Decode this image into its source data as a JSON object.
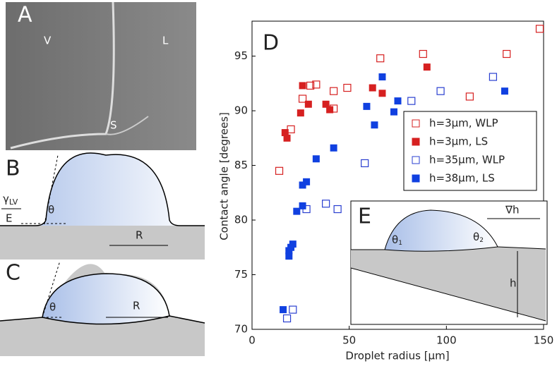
{
  "panels": {
    "a": {
      "label": "A",
      "v": "V",
      "l": "L",
      "s": "S"
    },
    "b": {
      "label": "B",
      "gamma": "γ",
      "gamma_sub": "LV",
      "e": "E",
      "theta": "θ",
      "r": "R"
    },
    "c": {
      "label": "C",
      "theta": "θ",
      "r": "R"
    },
    "d": {
      "label": "D"
    },
    "e": {
      "label": "E",
      "theta1": "θ",
      "theta1_sub": "1",
      "theta2": "θ",
      "theta2_sub": "2",
      "grad": "∇h",
      "h": "h"
    }
  },
  "chart_data": {
    "type": "scatter",
    "x_label": "Droplet radius [μm]",
    "y_label": "Contact angle [degrees]",
    "xlim": [
      0,
      150
    ],
    "ylim": [
      70,
      98.2
    ],
    "xticks": [
      0,
      50,
      100,
      150
    ],
    "yticks": [
      70,
      75,
      80,
      85,
      90,
      95
    ],
    "legend": "upper right",
    "series": [
      {
        "name": "h=3μm, WLP",
        "color": "#d62020",
        "filled": false,
        "x": [
          14,
          20,
          26,
          30,
          33,
          42,
          42,
          49,
          66,
          88,
          112,
          131,
          148
        ],
        "values": [
          84.5,
          88.3,
          91.1,
          92.3,
          92.4,
          90.2,
          91.8,
          92.1,
          94.8,
          95.2,
          91.3,
          95.2,
          97.5
        ]
      },
      {
        "name": "h=3μm, LS",
        "color": "#d62020",
        "filled": true,
        "x": [
          17,
          18,
          25,
          26,
          29,
          38,
          40,
          62,
          67,
          90
        ],
        "values": [
          88,
          87.5,
          89.8,
          92.3,
          90.6,
          90.6,
          90.1,
          92.1,
          91.6,
          94
        ]
      },
      {
        "name": "h=35μm, WLP",
        "color": "#2a3fd0",
        "filled": false,
        "x": [
          18,
          21,
          28,
          38,
          44,
          58,
          82,
          97,
          124
        ],
        "values": [
          71,
          71.8,
          81,
          81.5,
          81,
          85.2,
          90.9,
          91.8,
          93.1
        ]
      },
      {
        "name": "h=38μm, LS",
        "color": "#1040e0",
        "filled": true,
        "x": [
          16,
          19,
          19,
          20,
          21,
          23,
          26,
          26,
          28,
          33,
          42,
          59,
          63,
          67,
          73,
          75,
          130
        ],
        "values": [
          71.8,
          76.7,
          77.2,
          77.5,
          77.8,
          80.8,
          81.3,
          83.2,
          83.5,
          85.6,
          86.6,
          90.4,
          88.7,
          93.1,
          89.9,
          90.9,
          91.8
        ]
      }
    ]
  }
}
